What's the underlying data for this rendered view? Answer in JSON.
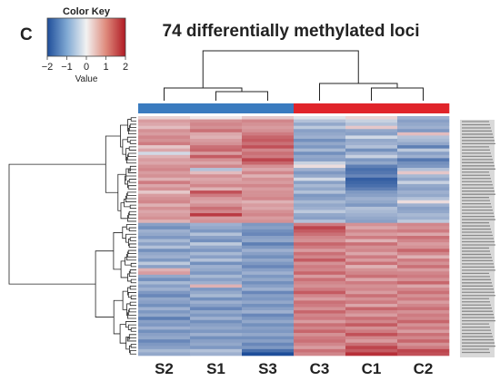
{
  "panel_label": "C",
  "colors": {
    "low": "#1f4e9a",
    "mid": "#f2f2f2",
    "high": "#b01a24",
    "group_S": "#3a7bbf",
    "group_C": "#e0242a",
    "dendrogram": "#222222"
  },
  "chart_data": {
    "type": "heatmap",
    "title": "74 differentially methylated loci",
    "columns": [
      "S2",
      "S1",
      "S3",
      "C3",
      "C1",
      "C2"
    ],
    "column_groups": [
      "S",
      "S",
      "S",
      "C",
      "C",
      "C"
    ],
    "row_count": 74,
    "color_key": {
      "title": "Color Key",
      "xlabel": "Value",
      "range": [
        -2,
        2
      ],
      "ticks": [
        "−2",
        "−1",
        "0",
        "1",
        "2"
      ]
    },
    "row_blocks": [
      {
        "count": 1,
        "values": [
          0.3,
          0.1,
          0.4,
          -0.2,
          0.3,
          -0.8
        ]
      },
      {
        "count": 1,
        "values": [
          0.8,
          0.9,
          1.0,
          -0.6,
          -0.4,
          -1.0
        ]
      },
      {
        "count": 1,
        "values": [
          0.7,
          1.0,
          0.9,
          -0.9,
          -0.6,
          -0.9
        ]
      },
      {
        "count": 1,
        "values": [
          0.5,
          0.9,
          0.8,
          -0.5,
          0.4,
          -0.8
        ]
      },
      {
        "count": 1,
        "values": [
          0.9,
          1.2,
          0.9,
          -1.0,
          -0.9,
          -1.1
        ]
      },
      {
        "count": 1,
        "values": [
          0.8,
          0.7,
          1.1,
          -0.9,
          -1.0,
          0.5
        ]
      },
      {
        "count": 1,
        "values": [
          1.0,
          0.6,
          1.3,
          -0.8,
          -0.3,
          -0.6
        ]
      },
      {
        "count": 1,
        "values": [
          0.9,
          0.8,
          1.4,
          -1.2,
          -0.9,
          -0.7
        ]
      },
      {
        "count": 1,
        "values": [
          1.1,
          0.9,
          1.2,
          -0.9,
          -0.8,
          -0.9
        ]
      },
      {
        "count": 1,
        "values": [
          0.4,
          1.2,
          1.5,
          -1.1,
          -0.6,
          -1.4
        ]
      },
      {
        "count": 1,
        "values": [
          0.7,
          1.3,
          1.0,
          -0.7,
          -1.2,
          -0.5
        ]
      },
      {
        "count": 1,
        "values": [
          -0.3,
          0.8,
          1.2,
          -1.2,
          -0.8,
          -1.0
        ]
      },
      {
        "count": 1,
        "values": [
          0.6,
          1.4,
          1.1,
          -0.9,
          -0.4,
          -0.8
        ]
      },
      {
        "count": 1,
        "values": [
          0.8,
          0.9,
          1.6,
          -1.0,
          -1.1,
          -1.5
        ]
      },
      {
        "count": 1,
        "values": [
          0.7,
          0.7,
          1.3,
          -0.4,
          -0.9,
          -1.2
        ]
      },
      {
        "count": 1,
        "values": [
          0.9,
          1.0,
          0.9,
          0.2,
          -1.4,
          -1.1
        ]
      },
      {
        "count": 1,
        "values": [
          1.0,
          -0.6,
          0.7,
          -0.8,
          -1.6,
          -0.6
        ]
      },
      {
        "count": 1,
        "values": [
          0.8,
          0.5,
          1.0,
          -1.1,
          -1.5,
          0.4
        ]
      },
      {
        "count": 1,
        "values": [
          0.9,
          0.9,
          0.6,
          -0.9,
          -1.3,
          -0.7
        ]
      },
      {
        "count": 1,
        "values": [
          0.6,
          0.7,
          0.9,
          -0.3,
          -1.8,
          -0.9
        ]
      },
      {
        "count": 1,
        "values": [
          1.1,
          0.8,
          0.8,
          -1.0,
          -1.7,
          -0.4
        ]
      },
      {
        "count": 1,
        "values": [
          0.7,
          1.0,
          1.0,
          -0.7,
          -1.6,
          -0.9
        ]
      },
      {
        "count": 1,
        "values": [
          0.9,
          0.6,
          0.8,
          -0.9,
          -1.4,
          -1.0
        ]
      },
      {
        "count": 1,
        "values": [
          0.4,
          1.5,
          0.9,
          -0.6,
          -1.1,
          -0.8
        ]
      },
      {
        "count": 1,
        "values": [
          0.8,
          1.1,
          0.9,
          -1.1,
          -1.0,
          -0.9
        ]
      },
      {
        "count": 1,
        "values": [
          0.9,
          0.8,
          1.0,
          -1.0,
          -0.8,
          -0.6
        ]
      },
      {
        "count": 1,
        "values": [
          1.0,
          0.7,
          0.6,
          -0.7,
          -0.9,
          0.2
        ]
      },
      {
        "count": 1,
        "values": [
          0.6,
          0.9,
          0.8,
          -0.9,
          -1.1,
          -0.8
        ]
      },
      {
        "count": 1,
        "values": [
          0.9,
          1.2,
          0.7,
          -0.8,
          -0.6,
          -1.0
        ]
      },
      {
        "count": 1,
        "values": [
          0.7,
          1.0,
          0.9,
          -0.5,
          -0.7,
          -0.9
        ]
      },
      {
        "count": 1,
        "values": [
          0.8,
          1.7,
          1.0,
          -0.9,
          -0.8,
          -0.7
        ]
      },
      {
        "count": 1,
        "values": [
          0.9,
          0.8,
          0.8,
          -1.0,
          -0.9,
          -0.8
        ]
      },
      {
        "count": 1,
        "values": [
          0.6,
          0.9,
          0.9,
          -0.6,
          -1.0,
          -0.5
        ]
      },
      {
        "count": 1,
        "values": [
          -1.0,
          -0.8,
          -1.1,
          1.1,
          0.9,
          1.0
        ]
      },
      {
        "count": 1,
        "values": [
          -1.2,
          -0.9,
          -1.0,
          1.6,
          0.7,
          0.9
        ]
      },
      {
        "count": 1,
        "values": [
          -0.8,
          -1.1,
          -1.2,
          1.4,
          1.0,
          1.1
        ]
      },
      {
        "count": 1,
        "values": [
          -0.9,
          -0.6,
          -1.3,
          1.2,
          0.8,
          0.7
        ]
      },
      {
        "count": 1,
        "values": [
          -1.1,
          -1.0,
          -1.0,
          1.0,
          1.1,
          1.2
        ]
      },
      {
        "count": 1,
        "values": [
          -0.7,
          -1.2,
          -0.9,
          0.9,
          0.6,
          1.0
        ]
      },
      {
        "count": 1,
        "values": [
          -1.0,
          -0.5,
          -1.4,
          1.3,
          1.2,
          0.8
        ]
      },
      {
        "count": 1,
        "values": [
          -0.6,
          -0.9,
          -1.1,
          1.1,
          0.9,
          0.9
        ]
      },
      {
        "count": 1,
        "values": [
          -1.2,
          -1.1,
          -0.8,
          0.8,
          1.0,
          1.3
        ]
      },
      {
        "count": 1,
        "values": [
          -0.9,
          -0.7,
          -1.0,
          1.2,
          0.7,
          1.0
        ]
      },
      {
        "count": 1,
        "values": [
          -0.8,
          -1.0,
          -1.2,
          1.0,
          1.1,
          0.6
        ]
      },
      {
        "count": 1,
        "values": [
          -1.1,
          -0.6,
          -0.9,
          1.4,
          0.8,
          1.1
        ]
      },
      {
        "count": 1,
        "values": [
          -0.5,
          -1.2,
          -1.1,
          0.9,
          1.2,
          0.9
        ]
      },
      {
        "count": 1,
        "values": [
          -1.0,
          -0.8,
          -1.3,
          1.1,
          0.6,
          1.2
        ]
      },
      {
        "count": 1,
        "values": [
          0.6,
          -0.9,
          -1.0,
          1.0,
          0.9,
          0.8
        ]
      },
      {
        "count": 1,
        "values": [
          0.8,
          -1.1,
          -0.8,
          1.3,
          1.0,
          1.0
        ]
      },
      {
        "count": 1,
        "values": [
          -0.9,
          -0.7,
          -1.1,
          0.8,
          1.2,
          1.1
        ]
      },
      {
        "count": 1,
        "values": [
          -1.2,
          -1.0,
          -0.9,
          1.2,
          0.7,
          0.9
        ]
      },
      {
        "count": 1,
        "values": [
          -0.7,
          -0.8,
          -1.2,
          1.0,
          1.1,
          1.3
        ]
      },
      {
        "count": 1,
        "values": [
          -1.0,
          0.6,
          -1.0,
          0.9,
          0.9,
          0.7
        ]
      },
      {
        "count": 1,
        "values": [
          -0.8,
          -1.1,
          -0.8,
          1.1,
          1.0,
          1.0
        ]
      },
      {
        "count": 1,
        "values": [
          -1.1,
          -0.9,
          -1.3,
          1.4,
          0.8,
          1.2
        ]
      },
      {
        "count": 1,
        "values": [
          -1.3,
          -0.7,
          -1.0,
          1.0,
          1.2,
          0.9
        ]
      },
      {
        "count": 1,
        "values": [
          -0.9,
          -1.2,
          -1.1,
          0.8,
          0.9,
          1.1
        ]
      },
      {
        "count": 1,
        "values": [
          -1.0,
          -0.8,
          -0.9,
          1.2,
          1.1,
          0.8
        ]
      },
      {
        "count": 1,
        "values": [
          -1.2,
          -1.0,
          -1.2,
          1.1,
          0.7,
          1.0
        ]
      },
      {
        "count": 1,
        "values": [
          -0.8,
          -1.3,
          -1.0,
          0.9,
          1.3,
          1.2
        ]
      },
      {
        "count": 1,
        "values": [
          -1.1,
          -0.9,
          -0.8,
          1.3,
          1.0,
          0.9
        ]
      },
      {
        "count": 1,
        "values": [
          -0.9,
          -1.1,
          -1.3,
          1.0,
          0.8,
          1.1
        ]
      },
      {
        "count": 1,
        "values": [
          -1.4,
          -0.8,
          -1.1,
          1.1,
          1.2,
          1.0
        ]
      },
      {
        "count": 1,
        "values": [
          -1.0,
          -1.2,
          -0.9,
          0.8,
          1.0,
          1.3
        ]
      },
      {
        "count": 1,
        "values": [
          -1.1,
          -1.0,
          -1.2,
          1.2,
          1.4,
          0.9
        ]
      },
      {
        "count": 1,
        "values": [
          -0.8,
          -0.9,
          -1.0,
          1.0,
          0.9,
          1.1
        ]
      },
      {
        "count": 1,
        "values": [
          -1.2,
          -1.1,
          -1.1,
          1.3,
          1.1,
          0.8
        ]
      },
      {
        "count": 1,
        "values": [
          -1.0,
          -0.8,
          -0.9,
          0.9,
          1.5,
          1.2
        ]
      },
      {
        "count": 1,
        "values": [
          -0.9,
          -1.2,
          -1.2,
          1.1,
          1.0,
          1.0
        ]
      },
      {
        "count": 1,
        "values": [
          -1.3,
          -1.0,
          -1.0,
          1.2,
          0.8,
          1.3
        ]
      },
      {
        "count": 1,
        "values": [
          -1.1,
          -0.9,
          -1.3,
          1.0,
          1.2,
          0.9
        ]
      },
      {
        "count": 1,
        "values": [
          -1.0,
          -1.1,
          -1.1,
          0.8,
          1.6,
          1.1
        ]
      },
      {
        "count": 1,
        "values": [
          -0.7,
          -0.6,
          -1.6,
          1.2,
          1.4,
          1.6
        ]
      },
      {
        "count": 1,
        "values": [
          -0.9,
          -0.8,
          -2.0,
          1.0,
          1.8,
          1.5
        ]
      }
    ]
  }
}
